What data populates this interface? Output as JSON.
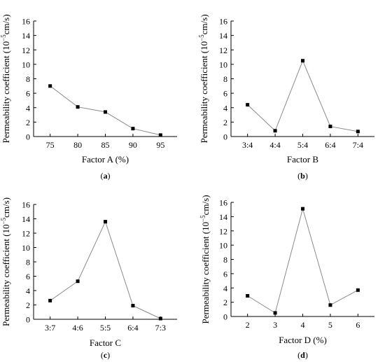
{
  "chart_data": [
    {
      "type": "line",
      "panel_label": "(a)",
      "xlabel": "Factor A (%)",
      "ylabel": "Permeability coefficient (10−5cm/s)",
      "categories": [
        "75",
        "80",
        "85",
        "90",
        "95"
      ],
      "values": [
        7.0,
        4.1,
        3.4,
        1.1,
        0.2
      ],
      "ylim": [
        0,
        16
      ],
      "yticks": [
        0,
        2,
        4,
        6,
        8,
        10,
        12,
        14,
        16
      ],
      "grid": false,
      "colors": {
        "line": "#8a8a8a",
        "marker": "#000000"
      }
    },
    {
      "type": "line",
      "panel_label": "(b)",
      "xlabel": "Factor B",
      "ylabel": "Permeability coefficient (10−5cm/s)",
      "categories": [
        "3:4",
        "4:4",
        "5:4",
        "6:4",
        "7:4"
      ],
      "values": [
        4.4,
        0.8,
        10.5,
        1.4,
        0.7
      ],
      "ylim": [
        0,
        16
      ],
      "yticks": [
        0,
        2,
        4,
        6,
        8,
        10,
        12,
        14,
        16
      ],
      "grid": false,
      "colors": {
        "line": "#8a8a8a",
        "marker": "#000000"
      }
    },
    {
      "type": "line",
      "panel_label": "(c)",
      "xlabel": "Factor C",
      "ylabel": "Permeability coefficient (10−5cm/s)",
      "categories": [
        "3:7",
        "4:6",
        "5:5",
        "6:4",
        "7:3"
      ],
      "values": [
        2.6,
        5.3,
        13.6,
        1.9,
        0.1
      ],
      "ylim": [
        0,
        16
      ],
      "yticks": [
        0,
        2,
        4,
        6,
        8,
        10,
        12,
        14,
        16
      ],
      "grid": false,
      "colors": {
        "line": "#8a8a8a",
        "marker": "#000000"
      }
    },
    {
      "type": "line",
      "panel_label": "(d)",
      "xlabel": "Factor D (%)",
      "ylabel": "Permeability coefficient (10−5cm/s)",
      "categories": [
        "2",
        "3",
        "4",
        "5",
        "6"
      ],
      "values": [
        2.9,
        0.5,
        15.1,
        1.6,
        3.7
      ],
      "ylim": [
        0,
        16
      ],
      "yticks": [
        0,
        2,
        4,
        6,
        8,
        10,
        12,
        14,
        16
      ],
      "grid": false,
      "colors": {
        "line": "#8a8a8a",
        "marker": "#000000"
      }
    }
  ]
}
